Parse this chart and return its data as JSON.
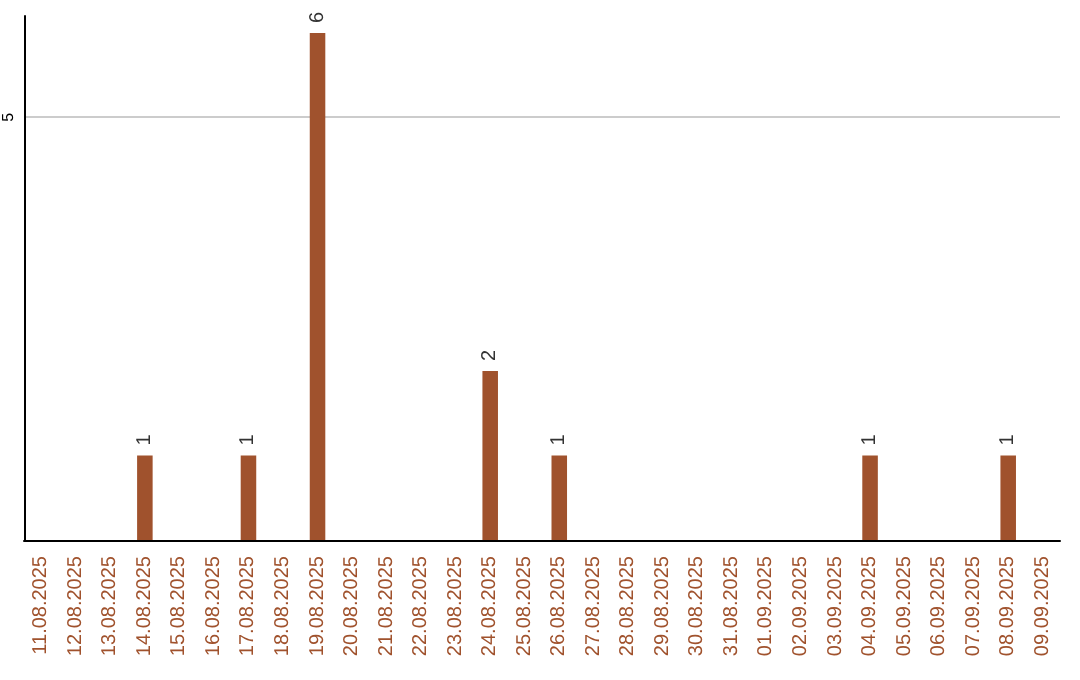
{
  "chart_data": {
    "type": "bar",
    "categories": [
      "11.08.2025",
      "12.08.2025",
      "13.08.2025",
      "14.08.2025",
      "15.08.2025",
      "16.08.2025",
      "17.08.2025",
      "18.08.2025",
      "19.08.2025",
      "20.08.2025",
      "21.08.2025",
      "22.08.2025",
      "23.08.2025",
      "24.08.2025",
      "25.08.2025",
      "26.08.2025",
      "27.08.2025",
      "28.08.2025",
      "29.08.2025",
      "30.08.2025",
      "31.08.2025",
      "01.09.2025",
      "02.09.2025",
      "03.09.2025",
      "04.09.2025",
      "05.09.2025",
      "06.09.2025",
      "07.09.2025",
      "08.09.2025",
      "09.09.2025"
    ],
    "values": [
      0,
      0,
      0,
      1,
      0,
      0,
      1,
      0,
      6,
      0,
      0,
      0,
      0,
      2,
      0,
      1,
      0,
      0,
      0,
      0,
      0,
      0,
      0,
      0,
      1,
      0,
      0,
      0,
      1,
      0
    ],
    "value_labels": [
      null,
      null,
      null,
      "1",
      null,
      null,
      "1",
      null,
      "6",
      null,
      null,
      null,
      null,
      "2",
      null,
      "1",
      null,
      null,
      null,
      null,
      null,
      null,
      null,
      null,
      "1",
      null,
      null,
      null,
      "1",
      null
    ],
    "color": "#a0522d",
    "ylim": [
      0,
      6.2
    ],
    "yticks": [
      5
    ],
    "grid": "y"
  }
}
